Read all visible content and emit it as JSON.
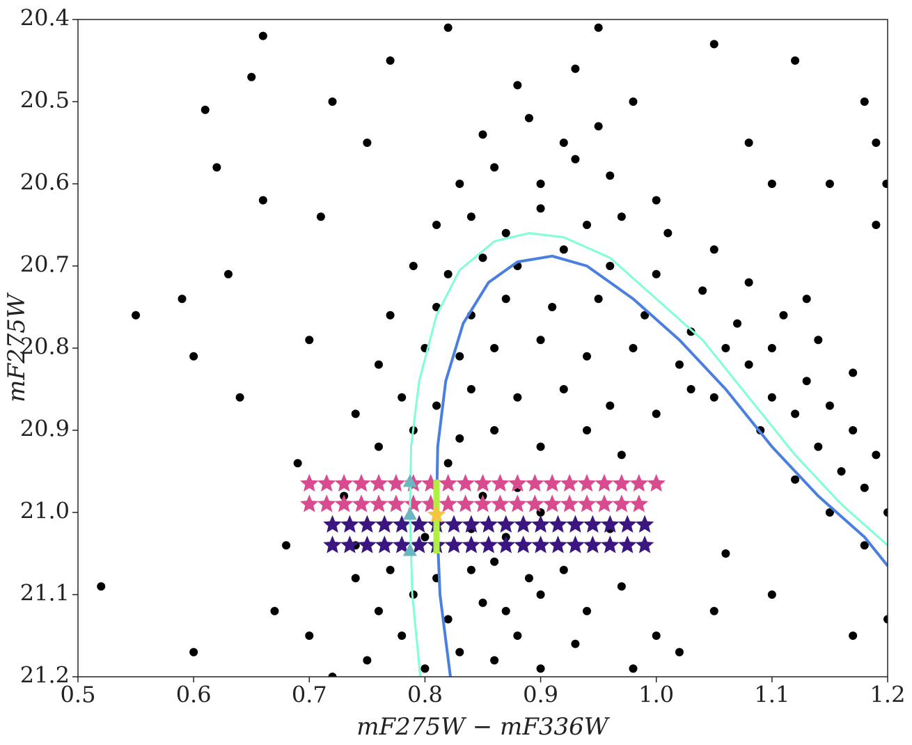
{
  "chart_data": {
    "type": "scatter",
    "xlabel": "mF275W − mF336W",
    "ylabel": "mF275W",
    "xlim": [
      0.5,
      1.2
    ],
    "ylim": [
      21.2,
      20.4
    ],
    "xticks": [
      0.5,
      0.6,
      0.7,
      0.8,
      0.9,
      {
        "value": 1,
        "label": "1.0"
      },
      1.1,
      1.2
    ],
    "yticks": [
      20.4,
      20.5,
      20.6,
      20.7,
      20.8,
      20.9,
      {
        "value": 21,
        "label": "21.0"
      },
      21.1,
      21.2
    ],
    "series": [
      {
        "type": "scatter",
        "marker": "circle",
        "color": "#000000",
        "x": [
          0.75,
          0.78,
          0.8,
          0.83,
          0.86,
          0.88,
          0.9,
          0.93,
          0.76,
          0.79,
          0.82,
          0.85,
          0.87,
          0.9,
          0.94,
          0.74,
          0.77,
          0.81,
          0.84,
          0.86,
          0.89,
          0.92,
          0.97,
          0.8,
          0.84,
          0.87,
          0.9,
          0.85,
          0.88,
          0.82,
          0.76,
          0.79,
          0.83,
          0.86,
          0.9,
          0.94,
          0.97,
          0.74,
          0.78,
          0.81,
          0.84,
          0.88,
          0.92,
          0.96,
          1.0,
          0.76,
          0.8,
          0.83,
          0.86,
          0.9,
          0.94,
          0.98,
          1.02,
          0.77,
          0.81,
          0.84,
          0.87,
          0.91,
          0.95,
          0.99,
          1.03,
          1.06,
          0.79,
          0.82,
          0.85,
          0.88,
          0.92,
          0.96,
          1.0,
          1.04,
          0.81,
          0.84,
          0.87,
          0.9,
          0.94,
          0.97,
          1.01,
          1.05,
          0.83,
          0.86,
          0.9,
          0.93,
          0.96,
          1.0,
          0.85,
          0.89,
          0.92,
          0.95,
          0.88,
          0.93,
          0.98,
          1.08,
          1.1,
          1.12,
          1.14,
          1.16,
          1.18,
          1.2,
          1.07,
          1.1,
          1.13,
          1.15,
          1.17,
          1.19,
          1.11,
          1.14,
          1.17,
          1.05,
          1.09,
          1.12,
          1.15,
          1.18,
          1.03,
          1.08,
          1.13,
          0.52,
          0.55,
          0.59,
          0.6,
          0.6,
          0.61,
          0.62,
          0.63,
          0.65,
          0.66,
          0.64,
          0.67,
          0.69,
          0.7,
          0.72,
          0.71,
          0.73,
          0.7,
          0.68,
          0.75,
          0.77,
          0.82,
          0.95,
          1.05,
          1.12,
          1.18,
          1.199,
          1.19,
          1.19,
          1.15,
          1.1,
          1.08,
          1.2,
          1.17,
          1.1,
          1.05,
          1.02,
          1.06,
          1.0,
          0.98,
          0.96,
          0.72,
          0.74,
          0.66
        ],
        "y": [
          21.18,
          21.15,
          21.19,
          21.17,
          21.18,
          21.15,
          21.19,
          21.16,
          21.12,
          21.1,
          21.13,
          21.11,
          21.12,
          21.1,
          21.12,
          21.08,
          21.07,
          21.08,
          21.07,
          21.06,
          21.08,
          21.07,
          21.09,
          21.03,
          21.02,
          21.03,
          21.0,
          20.98,
          20.97,
          20.94,
          20.92,
          20.9,
          20.91,
          20.9,
          20.92,
          20.9,
          20.93,
          20.88,
          20.86,
          20.87,
          20.85,
          20.86,
          20.85,
          20.87,
          20.88,
          20.82,
          20.8,
          20.81,
          20.8,
          20.79,
          20.81,
          20.8,
          20.82,
          20.76,
          20.75,
          20.76,
          20.74,
          20.75,
          20.74,
          20.76,
          20.78,
          20.8,
          20.7,
          20.71,
          20.69,
          20.7,
          20.68,
          20.7,
          20.71,
          20.73,
          20.65,
          20.64,
          20.66,
          20.63,
          20.65,
          20.64,
          20.66,
          20.68,
          20.6,
          20.58,
          20.6,
          20.57,
          20.59,
          20.62,
          20.54,
          20.52,
          20.55,
          20.53,
          20.48,
          20.46,
          20.5,
          20.82,
          20.86,
          20.88,
          20.92,
          20.95,
          20.97,
          21.0,
          20.77,
          20.8,
          20.84,
          20.87,
          20.9,
          20.93,
          20.76,
          20.79,
          20.83,
          20.86,
          20.9,
          20.96,
          21.0,
          21.04,
          20.85,
          20.72,
          20.74,
          21.09,
          20.76,
          20.74,
          20.81,
          21.17,
          20.51,
          20.58,
          20.71,
          20.47,
          20.42,
          20.86,
          21.12,
          20.94,
          21.15,
          20.5,
          20.64,
          20.98,
          20.79,
          21.04,
          20.55,
          20.45,
          20.41,
          20.41,
          20.43,
          20.45,
          20.5,
          20.6,
          20.55,
          20.65,
          20.6,
          20.6,
          20.55,
          21.13,
          21.15,
          21.1,
          21.12,
          21.17,
          21.05,
          21.15,
          21.19,
          21.02,
          21.2,
          21.04,
          20.62
        ]
      },
      {
        "type": "scatter",
        "marker": "star",
        "color": "#d94b8f",
        "x": [
          0.7,
          0.715,
          0.73,
          0.745,
          0.76,
          0.775,
          0.79,
          0.805,
          0.82,
          0.835,
          0.85,
          0.865,
          0.88,
          0.895,
          0.91,
          0.925,
          0.94,
          0.955,
          0.97,
          0.985,
          0.7,
          0.715,
          0.73,
          0.745,
          0.76,
          0.775,
          0.79,
          0.805,
          0.82,
          0.835,
          0.85,
          0.865,
          0.88,
          0.895,
          0.91,
          0.925,
          0.94,
          0.955,
          0.97,
          0.985,
          1.0
        ],
        "y": [
          20.965,
          20.965,
          20.965,
          20.965,
          20.965,
          20.965,
          20.965,
          20.965,
          20.965,
          20.965,
          20.965,
          20.965,
          20.965,
          20.965,
          20.965,
          20.965,
          20.965,
          20.965,
          20.965,
          20.965,
          20.99,
          20.99,
          20.99,
          20.99,
          20.99,
          20.99,
          20.99,
          20.99,
          20.99,
          20.99,
          20.99,
          20.99,
          20.99,
          20.99,
          20.99,
          20.99,
          20.99,
          20.99,
          20.99,
          20.99,
          20.965
        ]
      },
      {
        "type": "scatter",
        "marker": "star",
        "color": "#3b1680",
        "x": [
          0.72,
          0.735,
          0.75,
          0.765,
          0.78,
          0.795,
          0.81,
          0.825,
          0.84,
          0.855,
          0.87,
          0.885,
          0.9,
          0.915,
          0.93,
          0.945,
          0.96,
          0.975,
          0.99,
          0.72,
          0.735,
          0.75,
          0.765,
          0.78,
          0.795,
          0.81,
          0.825,
          0.84,
          0.855,
          0.87,
          0.885,
          0.9,
          0.915,
          0.93,
          0.945,
          0.96,
          0.975,
          0.99
        ],
        "y": [
          21.015,
          21.015,
          21.015,
          21.015,
          21.015,
          21.015,
          21.015,
          21.015,
          21.015,
          21.015,
          21.015,
          21.015,
          21.015,
          21.015,
          21.015,
          21.015,
          21.015,
          21.015,
          21.015,
          21.04,
          21.04,
          21.04,
          21.04,
          21.04,
          21.04,
          21.04,
          21.04,
          21.04,
          21.04,
          21.04,
          21.04,
          21.04,
          21.04,
          21.04,
          21.04,
          21.04,
          21.04,
          21.04
        ]
      },
      {
        "type": "line",
        "color": "#7fffd4",
        "width": 3,
        "x": [
          0.796,
          0.789,
          0.787,
          0.788,
          0.795,
          0.81,
          0.83,
          0.86,
          0.89,
          0.92,
          0.96,
          1.0,
          1.04,
          1.08,
          1.12,
          1.16,
          1.2
        ],
        "y": [
          21.2,
          21.1,
          21.0,
          20.92,
          20.84,
          20.76,
          20.705,
          20.67,
          20.66,
          20.665,
          20.69,
          20.74,
          20.79,
          20.86,
          20.93,
          20.99,
          21.04
        ]
      },
      {
        "type": "line",
        "color": "#4a7fe0",
        "width": 4,
        "x": [
          0.822,
          0.813,
          0.81,
          0.811,
          0.818,
          0.833,
          0.855,
          0.88,
          0.91,
          0.94,
          0.98,
          1.02,
          1.06,
          1.1,
          1.14,
          1.18,
          1.2
        ],
        "y": [
          21.2,
          21.1,
          21.0,
          20.92,
          20.84,
          20.77,
          20.72,
          20.695,
          20.688,
          20.7,
          20.74,
          20.79,
          20.85,
          20.92,
          20.98,
          21.03,
          21.065
        ]
      },
      {
        "type": "line",
        "color": "#b0f040",
        "width": 9,
        "x": [
          0.81,
          0.81
        ],
        "y": [
          20.96,
          21.05
        ]
      },
      {
        "type": "scatter",
        "marker": "triangle",
        "color": "#6cb6c0",
        "x": [
          0.787,
          0.787,
          0.787
        ],
        "y": [
          20.963,
          21.003,
          21.047
        ]
      },
      {
        "type": "scatter",
        "marker": "star",
        "color": "#f5c542",
        "x": [
          0.81
        ],
        "y": [
          21.003
        ]
      }
    ]
  }
}
